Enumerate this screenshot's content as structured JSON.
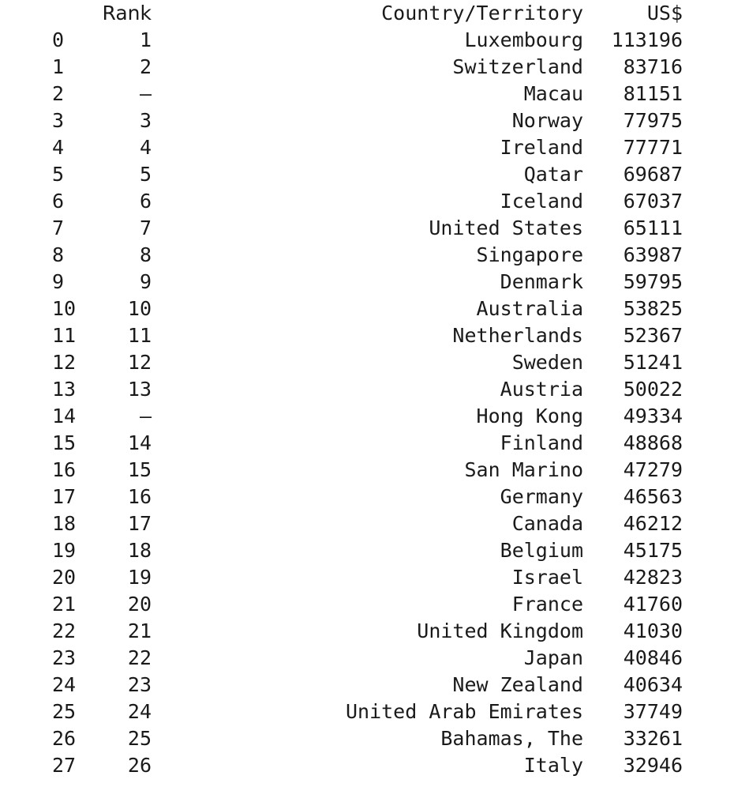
{
  "table": {
    "headers": {
      "index": "",
      "rank": "Rank",
      "country": "Country/Territory",
      "usd": "US$"
    },
    "rows": [
      {
        "index": "0",
        "rank": "1",
        "country": "Luxembourg",
        "usd": "113196"
      },
      {
        "index": "1",
        "rank": "2",
        "country": "Switzerland",
        "usd": "83716"
      },
      {
        "index": "2",
        "rank": "–",
        "country": "Macau",
        "usd": "81151"
      },
      {
        "index": "3",
        "rank": "3",
        "country": "Norway",
        "usd": "77975"
      },
      {
        "index": "4",
        "rank": "4",
        "country": "Ireland",
        "usd": "77771"
      },
      {
        "index": "5",
        "rank": "5",
        "country": "Qatar",
        "usd": "69687"
      },
      {
        "index": "6",
        "rank": "6",
        "country": "Iceland",
        "usd": "67037"
      },
      {
        "index": "7",
        "rank": "7",
        "country": "United States",
        "usd": "65111"
      },
      {
        "index": "8",
        "rank": "8",
        "country": "Singapore",
        "usd": "63987"
      },
      {
        "index": "9",
        "rank": "9",
        "country": "Denmark",
        "usd": "59795"
      },
      {
        "index": "10",
        "rank": "10",
        "country": "Australia",
        "usd": "53825"
      },
      {
        "index": "11",
        "rank": "11",
        "country": "Netherlands",
        "usd": "52367"
      },
      {
        "index": "12",
        "rank": "12",
        "country": "Sweden",
        "usd": "51241"
      },
      {
        "index": "13",
        "rank": "13",
        "country": "Austria",
        "usd": "50022"
      },
      {
        "index": "14",
        "rank": "–",
        "country": "Hong Kong",
        "usd": "49334"
      },
      {
        "index": "15",
        "rank": "14",
        "country": "Finland",
        "usd": "48868"
      },
      {
        "index": "16",
        "rank": "15",
        "country": "San Marino",
        "usd": "47279"
      },
      {
        "index": "17",
        "rank": "16",
        "country": "Germany",
        "usd": "46563"
      },
      {
        "index": "18",
        "rank": "17",
        "country": "Canada",
        "usd": "46212"
      },
      {
        "index": "19",
        "rank": "18",
        "country": "Belgium",
        "usd": "45175"
      },
      {
        "index": "20",
        "rank": "19",
        "country": "Israel",
        "usd": "42823"
      },
      {
        "index": "21",
        "rank": "20",
        "country": "France",
        "usd": "41760"
      },
      {
        "index": "22",
        "rank": "21",
        "country": "United Kingdom",
        "usd": "41030"
      },
      {
        "index": "23",
        "rank": "22",
        "country": "Japan",
        "usd": "40846"
      },
      {
        "index": "24",
        "rank": "23",
        "country": "New Zealand",
        "usd": "40634"
      },
      {
        "index": "25",
        "rank": "24",
        "country": "United Arab Emirates",
        "usd": "37749"
      },
      {
        "index": "26",
        "rank": "25",
        "country": "Bahamas, The",
        "usd": "33261"
      },
      {
        "index": "27",
        "rank": "26",
        "country": "Italy",
        "usd": "32946"
      }
    ]
  }
}
